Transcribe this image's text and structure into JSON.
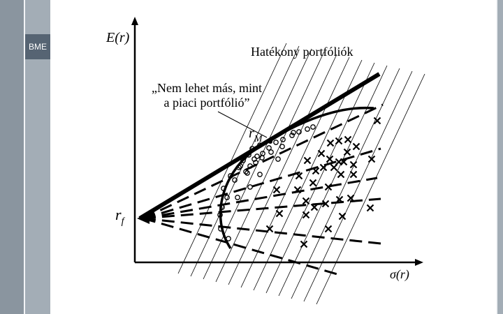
{
  "logo_text": "BME",
  "labels": {
    "y_axis": "E(r)",
    "x_axis": "σ(r)",
    "efficient_portfolios": "Hatékony portfóliók",
    "quote_line1": "„Nem lehet más, mint",
    "quote_line2": "a piaci portfólió”",
    "market_portfolio": "rM",
    "risk_free": "rf"
  },
  "colors": {
    "ink": "#000000",
    "sidebar": "#8a959f",
    "sidebar_inner": "#a3adb6",
    "logo_bg": "#566473"
  }
}
